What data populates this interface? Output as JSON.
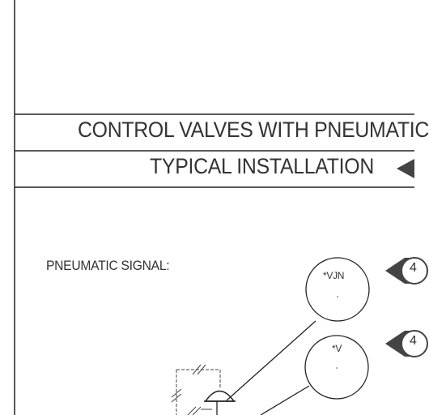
{
  "title": {
    "line1": "CONTROL VALVES WITH PNEUMATIC",
    "line2": "TYPICAL INSTALLATION"
  },
  "signal_label": "PNEUMATIC SIGNAL:",
  "bubbles": [
    {
      "tag": "*VJN"
    },
    {
      "tag": "*V"
    }
  ],
  "badges": [
    {
      "text": "4"
    },
    {
      "text": "4"
    }
  ],
  "colors": {
    "line": "#222222",
    "badge_fill": "#555555",
    "background": "#ffffff"
  }
}
